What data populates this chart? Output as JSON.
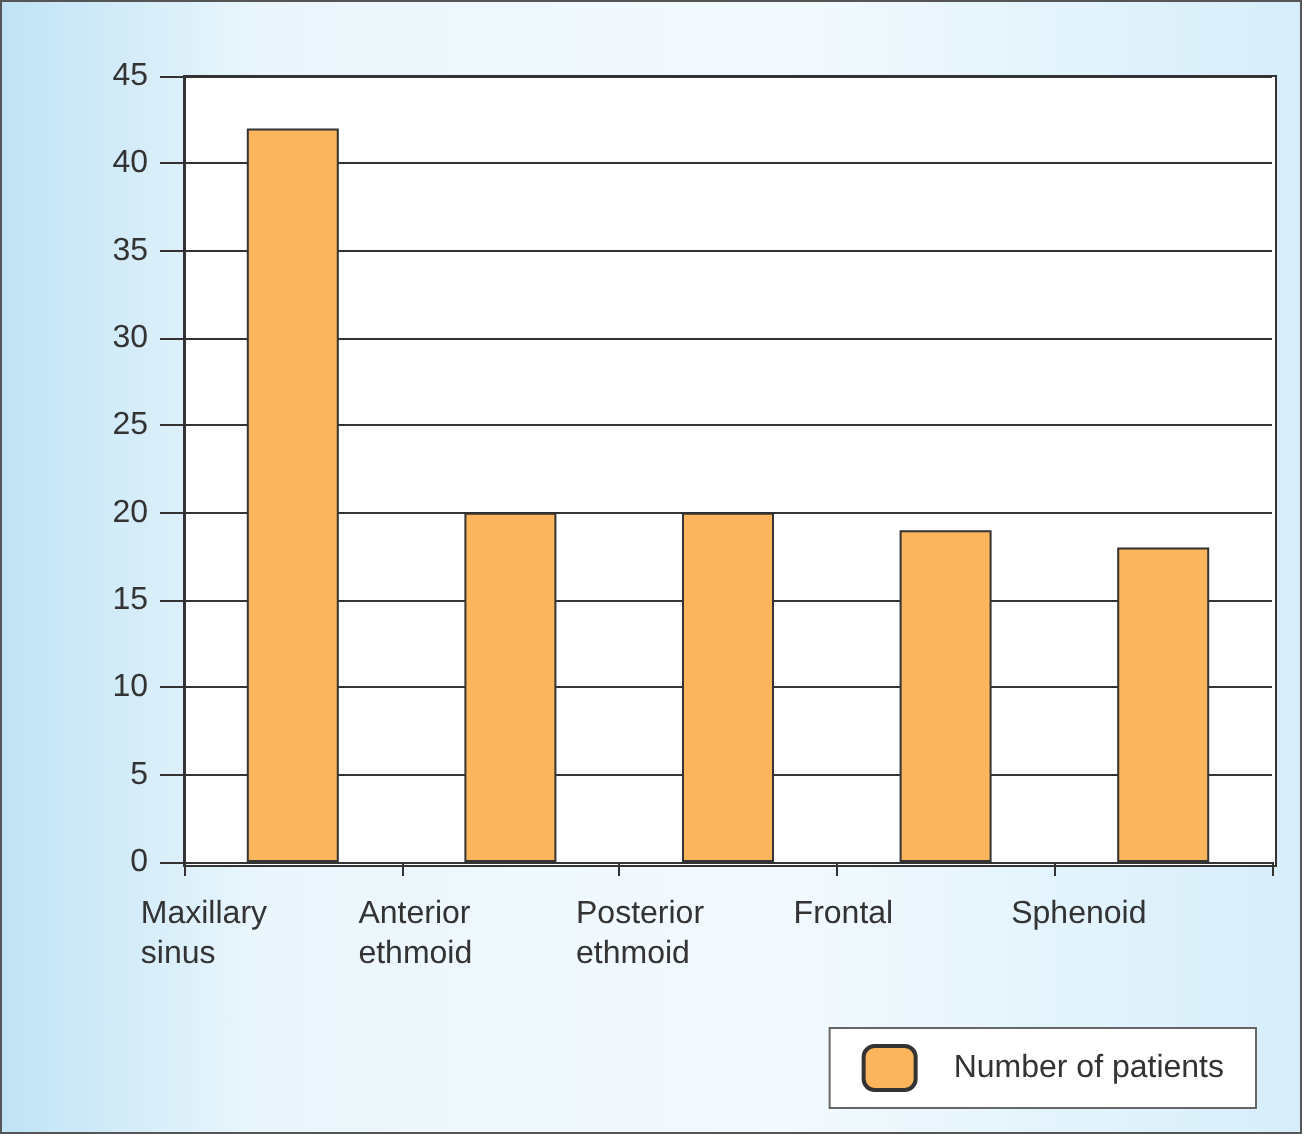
{
  "chart_data": {
    "type": "bar",
    "categories": [
      "Maxillary\nsinus",
      "Anterior\nethmoid",
      "Posterior\nethmoid",
      "Frontal",
      "Sphenoid"
    ],
    "series": [
      {
        "name": "Number of patients",
        "color": "#fbb55c",
        "values": [
          42,
          20,
          20,
          19,
          18
        ]
      }
    ],
    "ylim": [
      0,
      45
    ],
    "yticks": [
      0,
      5,
      10,
      15,
      20,
      25,
      30,
      35,
      40,
      45
    ],
    "grid": "y",
    "legend": "bottom right"
  }
}
